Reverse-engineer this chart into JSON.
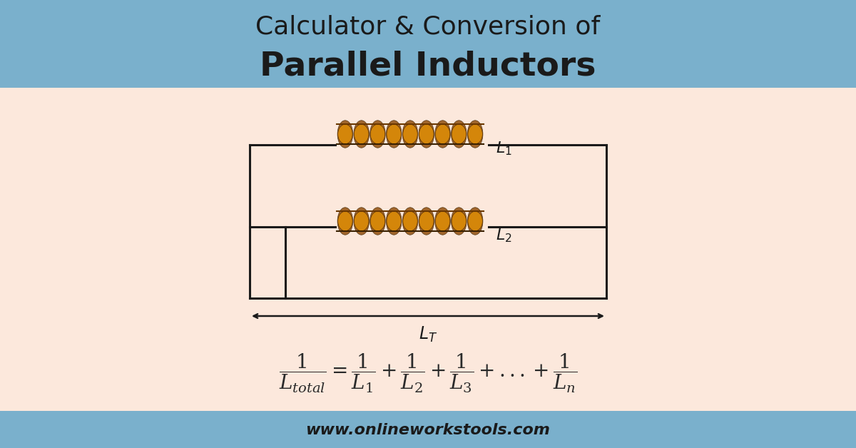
{
  "title_line1": "Calculator & Conversion of",
  "title_line2": "Parallel Inductors",
  "footer_text": "www.onlineworkstools.com",
  "header_bg": "#7ab0cc",
  "footer_bg": "#7ab0cc",
  "body_bg": "#fce8dc",
  "title_color": "#1a1a1a",
  "line_color": "#1a1a1a",
  "formula_color": "#2a2a2a",
  "inductor_color": "#c47a20",
  "inductor_highlight": "#e8a030"
}
